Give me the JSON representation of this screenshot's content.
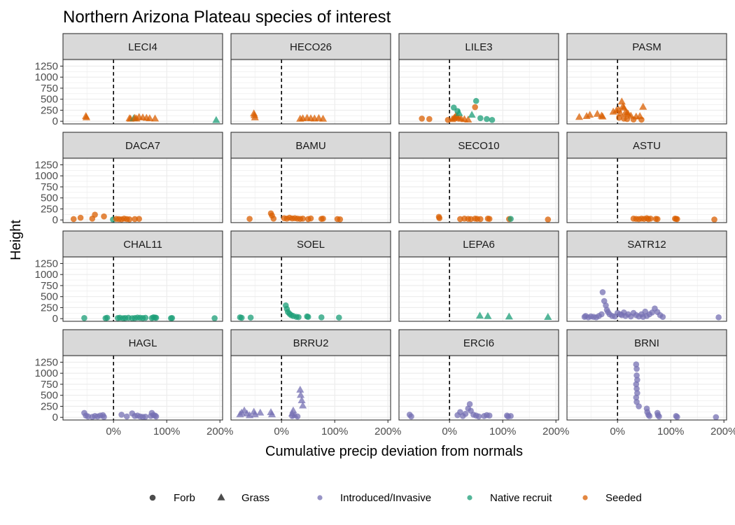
{
  "chart_data": {
    "type": "scatter",
    "title": "Northern Arizona Plateau species of interest",
    "xlabel": "Cumulative precip deviation from normals",
    "ylabel": "Height",
    "xlim": [
      -95,
      205
    ],
    "ylim": [
      -60,
      1400
    ],
    "x_ticks": [
      0,
      100,
      200
    ],
    "x_tick_labels": [
      "0%",
      "100%",
      "200%"
    ],
    "y_ticks": [
      0,
      250,
      500,
      750,
      1000,
      1250
    ],
    "y_tick_labels": [
      "0",
      "250",
      "500",
      "750",
      "1000",
      "1250"
    ],
    "reference_line": {
      "x": 0,
      "style": "dashed"
    },
    "grid": true,
    "legend_position": "bottom",
    "shape_legend": [
      {
        "label": "Forb",
        "shape": "circle"
      },
      {
        "label": "Grass",
        "shape": "triangle"
      }
    ],
    "color_legend": [
      {
        "label": "Introduced/Invasive",
        "color": "#7570b3"
      },
      {
        "label": "Native recruit",
        "color": "#1b9e77"
      },
      {
        "label": "Seeded",
        "color": "#d95f02"
      }
    ],
    "panels": [
      {
        "label": "LECI4",
        "shape": "triangle",
        "color": "#d95f02",
        "alt": {
          "color": "#1b9e77",
          "idx": [
            4,
            12
          ]
        },
        "x": [
          -52,
          -51,
          30,
          32,
          38,
          40,
          43,
          48,
          55,
          62,
          68,
          78,
          193
        ],
        "y": [
          110,
          80,
          60,
          50,
          60,
          70,
          55,
          90,
          80,
          70,
          60,
          55,
          20
        ]
      },
      {
        "label": "HECO26",
        "shape": "triangle",
        "color": "#d95f02",
        "x": [
          -52,
          -51,
          -50,
          35,
          40,
          48,
          55,
          62,
          70,
          78
        ],
        "y": [
          170,
          130,
          80,
          50,
          60,
          70,
          60,
          55,
          65,
          50
        ]
      },
      {
        "label": "LILE3",
        "shape": "mixed",
        "color": "#d95f02",
        "alt": {
          "color": "#1b9e77",
          "idx": [
            12,
            13,
            14,
            15,
            16,
            17,
            18,
            19
          ]
        },
        "tri_idx": [
          3,
          4,
          5,
          6,
          7,
          8,
          9,
          10,
          11,
          14,
          15
        ],
        "x": [
          -52,
          -38,
          -3,
          5,
          8,
          10,
          12,
          14,
          18,
          22,
          28,
          35,
          8,
          15,
          18,
          42,
          50,
          58,
          70,
          80,
          48
        ],
        "y": [
          60,
          50,
          30,
          40,
          60,
          80,
          120,
          100,
          70,
          50,
          40,
          30,
          310,
          230,
          180,
          140,
          460,
          70,
          50,
          30,
          320
        ]
      },
      {
        "label": "PASM",
        "shape": "mixed",
        "color": "#d95f02",
        "tri_idx": [
          0,
          1,
          2,
          3,
          4,
          5,
          6,
          7,
          8,
          9,
          10,
          11,
          12,
          13,
          14,
          15,
          16,
          17,
          18,
          19
        ],
        "x": [
          -72,
          -58,
          -52,
          -38,
          -30,
          -28,
          -8,
          -2,
          2,
          5,
          8,
          10,
          12,
          15,
          18,
          20,
          25,
          35,
          42,
          48,
          3,
          12,
          18,
          30,
          45
        ],
        "y": [
          90,
          110,
          140,
          160,
          120,
          100,
          210,
          240,
          260,
          170,
          440,
          330,
          300,
          200,
          180,
          160,
          120,
          100,
          110,
          320,
          80,
          60,
          50,
          40,
          35
        ]
      },
      {
        "label": "DACA7",
        "shape": "circle",
        "color": "#d95f02",
        "alt": {
          "color": "#1b9e77",
          "idx": [
            5
          ]
        },
        "x": [
          -75,
          -62,
          -40,
          -35,
          -18,
          -1,
          5,
          10,
          15,
          20,
          25,
          30,
          40,
          48
        ],
        "y": [
          20,
          50,
          30,
          120,
          80,
          10,
          25,
          20,
          15,
          30,
          20,
          15,
          20,
          25
        ]
      },
      {
        "label": "BAMU",
        "shape": "circle",
        "color": "#d95f02",
        "x": [
          -60,
          -20,
          -18,
          -15,
          5,
          10,
          15,
          20,
          25,
          30,
          35,
          40,
          50,
          55,
          75,
          78,
          105,
          110
        ],
        "y": [
          25,
          150,
          100,
          30,
          40,
          30,
          50,
          35,
          40,
          30,
          25,
          30,
          20,
          35,
          25,
          30,
          20,
          15
        ]
      },
      {
        "label": "SECO10",
        "shape": "circle",
        "color": "#d95f02",
        "alt": {
          "color": "#1b9e77",
          "idx": [
            12
          ]
        },
        "x": [
          -20,
          -19,
          20,
          28,
          35,
          40,
          48,
          52,
          58,
          72,
          75,
          112,
          115,
          185
        ],
        "y": [
          70,
          40,
          20,
          30,
          25,
          20,
          30,
          25,
          20,
          30,
          25,
          20,
          25,
          10
        ]
      },
      {
        "label": "ASTU",
        "shape": "circle",
        "color": "#d95f02",
        "x": [
          30,
          35,
          40,
          45,
          50,
          55,
          58,
          62,
          72,
          75,
          108,
          110,
          112,
          182
        ],
        "y": [
          30,
          25,
          20,
          30,
          25,
          40,
          20,
          30,
          25,
          20,
          30,
          25,
          20,
          10
        ]
      },
      {
        "label": "CHAL11",
        "shape": "circle",
        "color": "#1b9e77",
        "x": [
          -55,
          -15,
          -12,
          8,
          12,
          18,
          22,
          28,
          35,
          40,
          45,
          50,
          55,
          60,
          72,
          75,
          78,
          80,
          108,
          110,
          190
        ],
        "y": [
          15,
          10,
          20,
          15,
          20,
          10,
          15,
          20,
          10,
          15,
          25,
          20,
          15,
          20,
          15,
          30,
          25,
          20,
          10,
          15,
          10
        ]
      },
      {
        "label": "SOEL",
        "shape": "circle",
        "color": "#1b9e77",
        "x": [
          -78,
          -75,
          -58,
          8,
          10,
          12,
          15,
          18,
          22,
          28,
          32,
          48,
          50,
          75,
          108
        ],
        "y": [
          30,
          20,
          25,
          300,
          220,
          150,
          110,
          80,
          60,
          40,
          35,
          50,
          40,
          30,
          25
        ]
      },
      {
        "label": "LEPA6",
        "shape": "triangle",
        "color": "#1b9e77",
        "x": [
          57,
          72,
          112,
          185
        ],
        "y": [
          60,
          50,
          40,
          30
        ]
      },
      {
        "label": "SATR12",
        "shape": "circle",
        "color": "#7570b3",
        "x": [
          -62,
          -60,
          -55,
          -50,
          -45,
          -40,
          -35,
          -30,
          -28,
          -25,
          -22,
          -20,
          -18,
          -15,
          -10,
          -5,
          0,
          5,
          8,
          12,
          15,
          20,
          25,
          30,
          35,
          40,
          45,
          48,
          52,
          55,
          60,
          65,
          70,
          75,
          80,
          85,
          190
        ],
        "y": [
          40,
          60,
          30,
          50,
          40,
          30,
          60,
          100,
          600,
          400,
          300,
          200,
          150,
          100,
          60,
          50,
          130,
          100,
          80,
          140,
          60,
          100,
          50,
          130,
          80,
          50,
          100,
          40,
          160,
          60,
          100,
          140,
          230,
          150,
          80,
          40,
          30
        ]
      },
      {
        "label": "HAGL",
        "shape": "circle",
        "color": "#7570b3",
        "x": [
          -55,
          -52,
          -48,
          -40,
          -35,
          -30,
          -25,
          -20,
          -18,
          15,
          25,
          35,
          40,
          45,
          50,
          55,
          60,
          70,
          72,
          75,
          78,
          80
        ],
        "y": [
          100,
          40,
          20,
          10,
          30,
          20,
          40,
          50,
          10,
          60,
          20,
          90,
          30,
          40,
          20,
          10,
          15,
          30,
          100,
          50,
          40,
          20
        ]
      },
      {
        "label": "BRRU2",
        "shape": "mixed",
        "color": "#7570b3",
        "tri_idx": [
          0,
          1,
          2,
          3,
          4,
          5,
          6,
          7,
          8,
          9,
          10,
          11,
          12,
          13,
          14,
          15,
          16
        ],
        "x": [
          -78,
          -75,
          -70,
          -65,
          -60,
          -52,
          -50,
          -40,
          -20,
          -18,
          20,
          22,
          25,
          35,
          36,
          38,
          40,
          20,
          30
        ],
        "y": [
          60,
          100,
          150,
          80,
          40,
          120,
          60,
          100,
          110,
          60,
          80,
          150,
          40,
          620,
          500,
          380,
          260,
          30,
          20
        ]
      },
      {
        "label": "ERCI6",
        "shape": "circle",
        "color": "#7570b3",
        "x": [
          -75,
          -72,
          15,
          20,
          25,
          30,
          35,
          38,
          40,
          45,
          50,
          55,
          65,
          70,
          75,
          108,
          110,
          115
        ],
        "y": [
          60,
          20,
          50,
          120,
          30,
          80,
          200,
          300,
          150,
          60,
          40,
          20,
          30,
          50,
          40,
          40,
          20,
          30
        ]
      },
      {
        "label": "BRNI",
        "shape": "circle",
        "color": "#7570b3",
        "x": [
          35,
          36,
          36,
          37,
          35,
          36,
          37,
          35,
          36,
          40,
          55,
          56,
          58,
          60,
          75,
          76,
          78,
          110,
          112,
          185
        ],
        "y": [
          1200,
          1100,
          950,
          850,
          750,
          650,
          550,
          450,
          350,
          250,
          200,
          120,
          60,
          30,
          100,
          50,
          20,
          30,
          10,
          5
        ]
      }
    ]
  }
}
